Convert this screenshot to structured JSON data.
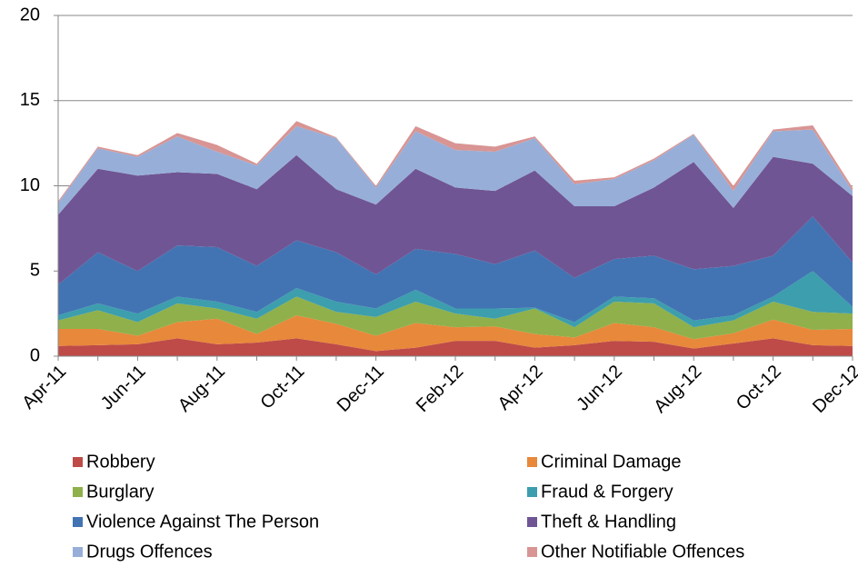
{
  "chart_data": {
    "type": "stacked_area",
    "categories": [
      "Apr-11",
      null,
      "Jun-11",
      null,
      "Aug-11",
      null,
      "Oct-11",
      null,
      "Dec-11",
      null,
      "Feb-12",
      null,
      "Apr-12",
      null,
      "Jun-12",
      null,
      "Aug-12",
      null,
      "Oct-12",
      null,
      "Dec-12"
    ],
    "series": [
      {
        "name": "Robbery",
        "color": "#be4b48",
        "values": [
          0.6,
          0.65,
          0.7,
          1.05,
          0.7,
          0.8,
          1.05,
          0.7,
          0.3,
          0.5,
          0.9,
          0.9,
          0.5,
          0.65,
          0.9,
          0.85,
          0.45,
          0.75,
          1.05,
          0.65,
          0.6
        ]
      },
      {
        "name": "Criminal Damage",
        "color": "#e8883a",
        "values": [
          1.0,
          0.95,
          0.5,
          0.95,
          1.5,
          0.5,
          1.35,
          1.2,
          0.9,
          1.45,
          0.8,
          0.85,
          0.8,
          0.45,
          1.05,
          0.85,
          0.55,
          0.6,
          1.1,
          0.9,
          1.0
        ]
      },
      {
        "name": "Burglary",
        "color": "#8fb04b",
        "values": [
          0.5,
          1.1,
          0.8,
          1.1,
          0.6,
          0.9,
          1.1,
          0.7,
          1.1,
          1.25,
          0.8,
          0.45,
          1.5,
          0.6,
          1.25,
          1.4,
          0.7,
          0.75,
          1.05,
          1.05,
          0.9
        ]
      },
      {
        "name": "Fraud & Forgery",
        "color": "#3d9ead",
        "values": [
          0.3,
          0.4,
          0.5,
          0.4,
          0.4,
          0.4,
          0.5,
          0.6,
          0.5,
          0.7,
          0.3,
          0.6,
          0.05,
          0.3,
          0.3,
          0.3,
          0.4,
          0.3,
          0.3,
          2.4,
          0.4
        ]
      },
      {
        "name": "Violence Against The Person",
        "color": "#4274b3",
        "values": [
          1.8,
          3.0,
          2.5,
          3.0,
          3.2,
          2.7,
          2.8,
          2.9,
          2.0,
          2.4,
          3.2,
          2.6,
          3.35,
          2.6,
          2.2,
          2.5,
          3.0,
          2.9,
          2.4,
          3.2,
          2.6
        ]
      },
      {
        "name": "Theft & Handling",
        "color": "#705594",
        "values": [
          4.1,
          4.9,
          5.6,
          4.3,
          4.3,
          4.5,
          5.0,
          3.7,
          4.1,
          4.7,
          3.9,
          4.3,
          4.7,
          4.2,
          3.1,
          4.0,
          6.3,
          3.4,
          5.8,
          3.1,
          3.9
        ]
      },
      {
        "name": "Drugs Offences",
        "color": "#97afd8",
        "values": [
          0.7,
          1.2,
          1.1,
          2.1,
          1.3,
          1.4,
          1.7,
          3.0,
          1.0,
          2.2,
          2.2,
          2.3,
          1.9,
          1.3,
          1.6,
          1.6,
          1.6,
          1.0,
          1.5,
          2.0,
          0.3
        ]
      },
      {
        "name": "Other Notifiable Offences",
        "color": "#d89594",
        "values": [
          0.1,
          0.1,
          0.1,
          0.2,
          0.4,
          0.1,
          0.3,
          0.05,
          0.1,
          0.3,
          0.4,
          0.3,
          0.1,
          0.2,
          0.1,
          0.1,
          0.05,
          0.3,
          0.1,
          0.25,
          0.2
        ]
      }
    ],
    "ylim": [
      0,
      20
    ],
    "yticks": [
      0,
      5,
      10,
      15,
      20
    ],
    "grid": true,
    "legend": "bottom"
  }
}
